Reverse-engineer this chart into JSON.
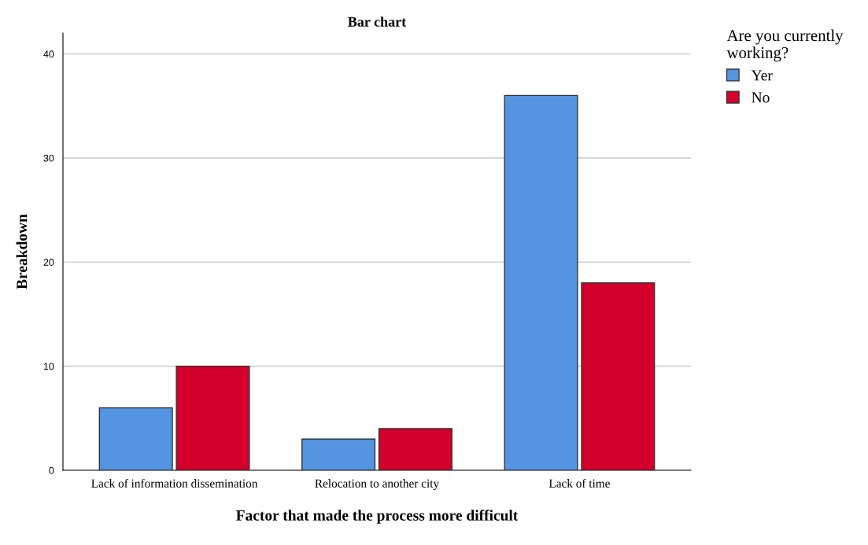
{
  "chart_data": {
    "type": "bar",
    "title": "Bar chart",
    "xlabel": "Factor that made the process more difficult",
    "ylabel": "Breakdown",
    "legend_title": "Are you currently\nworking?",
    "categories": [
      "Lack of information dissemination",
      "Relocation to another city",
      "Lack of time"
    ],
    "series": [
      {
        "name": "Yer",
        "color": "#5494e0",
        "values": [
          6,
          3,
          36
        ]
      },
      {
        "name": "No",
        "color": "#d2002a",
        "values": [
          10,
          4,
          18
        ]
      }
    ],
    "ylim": [
      0,
      42
    ],
    "yticks": [
      0,
      10,
      20,
      30,
      40
    ],
    "grid": "y",
    "legend": "top right"
  }
}
